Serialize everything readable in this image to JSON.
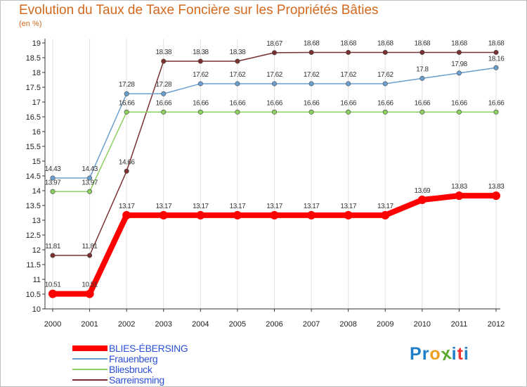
{
  "title": "Evolution du Taux de Taxe Foncière sur les Propriétés Bâties",
  "subtitle": "(en %)",
  "logo": {
    "letters": [
      "P",
      "r",
      "o",
      "x",
      "i",
      "t",
      "i"
    ],
    "colors": [
      "#1e7ec8",
      "#1e7ec8",
      "#f0a020",
      "#5aaa2a",
      "#1e7ec8",
      "#e33",
      "#1e7ec8"
    ]
  },
  "chart_data": {
    "type": "line",
    "title": "Evolution du Taux de Taxe Foncière sur les Propriétés Bâties",
    "ylabel": "(en %)",
    "xlabel": "",
    "ylim": [
      10,
      19
    ],
    "yticks": [
      "10",
      "10.5",
      "11",
      "11.5",
      "12",
      "12.5",
      "13",
      "13.5",
      "14",
      "14.5",
      "15",
      "15.5",
      "16",
      "16.5",
      "17",
      "17.5",
      "18",
      "18.5",
      "19"
    ],
    "categories": [
      "2000",
      "2001",
      "2002",
      "2003",
      "2004",
      "2005",
      "2006",
      "2007",
      "2008",
      "2009",
      "2010",
      "2011",
      "2012"
    ],
    "series": [
      {
        "name": "BLIES-ÉBERSING",
        "color": "#ff0000",
        "values": [
          10.51,
          10.51,
          13.17,
          13.17,
          13.17,
          13.17,
          13.17,
          13.17,
          13.17,
          13.17,
          13.69,
          13.83,
          13.83
        ],
        "labels": [
          "10.51",
          "10.51",
          "13.17",
          "13.17",
          "13.17",
          "13.17",
          "13.17",
          "13.17",
          "13.17",
          "13.17",
          "13.69",
          "13.83",
          "13.83"
        ]
      },
      {
        "name": "Frauenberg",
        "color": "#6a9fd0",
        "values": [
          14.43,
          14.43,
          17.28,
          17.28,
          17.62,
          17.62,
          17.62,
          17.62,
          17.62,
          17.62,
          17.8,
          17.98,
          18.16
        ],
        "labels": [
          "14.43",
          "14.43",
          "17.28",
          "17.28",
          "17.62",
          "17.62",
          "17.62",
          "17.62",
          "17.62",
          "17.62",
          "17.8",
          "17.98",
          "18.16"
        ]
      },
      {
        "name": "Bliesbruck",
        "color": "#8cd060",
        "values": [
          13.97,
          13.97,
          16.66,
          16.66,
          16.66,
          16.66,
          16.66,
          16.66,
          16.66,
          16.66,
          16.66,
          16.66,
          16.66
        ],
        "labels": [
          "13.97",
          "13.97",
          "16.66",
          "16.66",
          "16.66",
          "16.66",
          "16.66",
          "16.66",
          "16.66",
          "16.66",
          "16.66",
          "16.66",
          "16.66"
        ]
      },
      {
        "name": "Sarreinsming",
        "color": "#7a3030",
        "values": [
          11.81,
          11.81,
          14.66,
          18.38,
          18.38,
          18.38,
          18.67,
          18.68,
          18.68,
          18.68,
          18.68,
          18.68,
          18.68
        ],
        "labels": [
          "11.81",
          "11.81",
          "14.66",
          "18.38",
          "18.38",
          "18.38",
          "18.67",
          "18.68",
          "18.68",
          "18.68",
          "18.68",
          "18.68",
          "18.68"
        ]
      }
    ]
  }
}
